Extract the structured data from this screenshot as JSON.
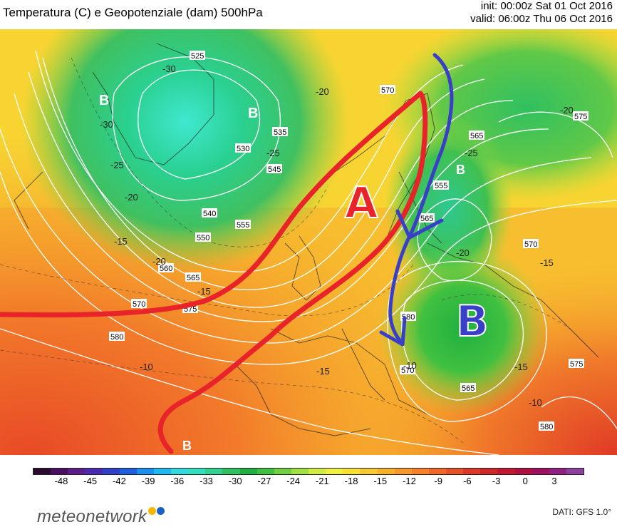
{
  "header": {
    "title": "Temperatura (C) e Geopotenziale (dam) 500hPa",
    "init": "init: 00:00z Sat 01 Oct 2016",
    "valid": "valid: 06:00z Thu 06 Oct 2016"
  },
  "map": {
    "pressure_labels": {
      "high": "A",
      "low_east": "B",
      "low_greenland_west": "B",
      "low_greenland_east": "B",
      "low_scandinavia": "B",
      "low_south": "B"
    },
    "geopotential_labels": [
      "525",
      "530",
      "535",
      "540",
      "545",
      "550",
      "555",
      "560",
      "565",
      "570",
      "575",
      "580",
      "570",
      "575",
      "565",
      "570",
      "580",
      "565",
      "575",
      "555",
      "565",
      "570",
      "580"
    ],
    "temperature_labels": [
      "-30",
      "-25",
      "-20",
      "-15",
      "-10",
      "-30",
      "-25",
      "-20",
      "-15",
      "-20",
      "-25",
      "-15",
      "-10",
      "-20",
      "-15",
      "-15",
      "-10",
      "-20"
    ],
    "colors": {
      "red_arrow": "#e8242a",
      "blue_arrow": "#3a3fc8",
      "contour": "#ffffff"
    }
  },
  "colorbar": {
    "ticks": [
      "-48",
      "-45",
      "-42",
      "-39",
      "-36",
      "-33",
      "-30",
      "-27",
      "-24",
      "-21",
      "-18",
      "-15",
      "-12",
      "-9",
      "-6",
      "-3",
      "0",
      "3"
    ],
    "colors": [
      "#2b0a2e",
      "#4a1060",
      "#5a1d8a",
      "#4a2ab0",
      "#3040c8",
      "#2060e0",
      "#1c90f0",
      "#20b8f0",
      "#30d8e0",
      "#30e0c0",
      "#30d090",
      "#30c060",
      "#20b040",
      "#40c040",
      "#70d040",
      "#a0e040",
      "#d0ec40",
      "#f0f040",
      "#f8e030",
      "#f8c830",
      "#f8b028",
      "#f89828",
      "#f88028",
      "#f06828",
      "#e85028",
      "#e03828",
      "#d02828",
      "#c01830",
      "#b01040",
      "#a01060",
      "#902080",
      "#9040a0"
    ]
  },
  "footer": {
    "brand": "meteonetwork",
    "credit": "DATI:  GFS 1.0°",
    "dot_colors": [
      "#f5b800",
      "#1b5fc8"
    ]
  }
}
